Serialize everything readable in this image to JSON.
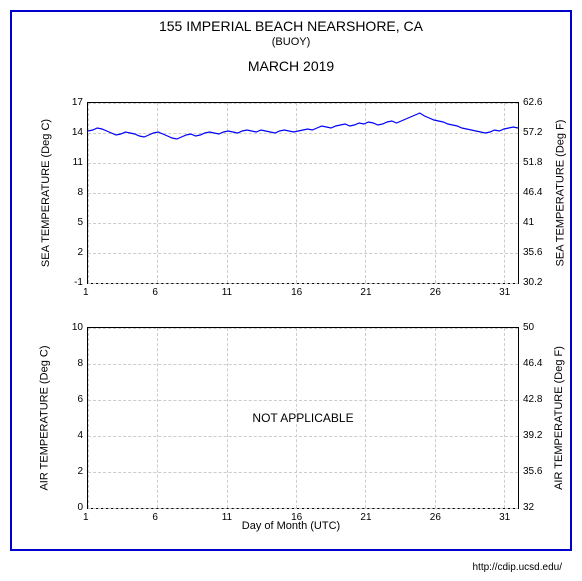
{
  "header": {
    "title": "155 IMPERIAL BEACH NEARSHORE, CA",
    "subtitle": "(BUOY)",
    "month": "MARCH 2019"
  },
  "xaxis": {
    "label": "Day of Month (UTC)",
    "min": 1,
    "max": 32,
    "ticks": [
      1,
      6,
      11,
      16,
      21,
      26,
      31
    ]
  },
  "sea_chart": {
    "type": "line",
    "ylabel_left": "SEA TEMPERATURE (Deg C)",
    "ylabel_right": "SEA TEMPERATURE (Deg F)",
    "ylim_c": [
      -1,
      17
    ],
    "ylim_f": [
      30.2,
      62.6
    ],
    "yticks_c": [
      -1,
      2,
      5,
      8,
      11,
      14,
      17
    ],
    "yticks_f": [
      30.2,
      35.6,
      41,
      46.4,
      51.8,
      57.2,
      62.6
    ],
    "line_color": "#0000ff",
    "grid_color": "#cccccc",
    "data": [
      14.2,
      14.3,
      14.5,
      14.4,
      14.2,
      14.0,
      13.8,
      13.9,
      14.1,
      14.0,
      13.9,
      13.7,
      13.6,
      13.8,
      14.0,
      14.1,
      13.9,
      13.7,
      13.5,
      13.4,
      13.6,
      13.8,
      13.9,
      13.7,
      13.8,
      14.0,
      14.1,
      14.0,
      13.9,
      14.1,
      14.2,
      14.1,
      14.0,
      14.2,
      14.3,
      14.2,
      14.1,
      14.3,
      14.2,
      14.1,
      14.0,
      14.2,
      14.3,
      14.2,
      14.1,
      14.2,
      14.3,
      14.4,
      14.3,
      14.5,
      14.7,
      14.6,
      14.5,
      14.7,
      14.8,
      14.9,
      14.7,
      14.8,
      15.0,
      14.9,
      15.1,
      15.0,
      14.8,
      14.9,
      15.1,
      15.2,
      15.0,
      15.2,
      15.4,
      15.6,
      15.8,
      16.0,
      15.7,
      15.5,
      15.3,
      15.2,
      15.1,
      14.9,
      14.8,
      14.7,
      14.5,
      14.4,
      14.3,
      14.2,
      14.1,
      14.0,
      14.1,
      14.3,
      14.2,
      14.4,
      14.5,
      14.6,
      14.5
    ]
  },
  "air_chart": {
    "type": "line",
    "ylabel_left": "AIR TEMPERATURE (Deg C)",
    "ylabel_right": "AIR TEMPERATURE (Deg F)",
    "ylim_c": [
      0,
      10
    ],
    "ylim_f": [
      32,
      50
    ],
    "yticks_c": [
      0,
      2,
      4,
      6,
      8,
      10
    ],
    "yticks_f": [
      32,
      35.6,
      39.2,
      42.8,
      46.4,
      50
    ],
    "na_text": "NOT APPLICABLE",
    "grid_color": "#cccccc"
  },
  "footer": {
    "url": "http://cdip.ucsd.edu/"
  },
  "colors": {
    "border": "#0000cc",
    "line": "#0000ff",
    "grid": "#cccccc",
    "text": "#000000"
  }
}
